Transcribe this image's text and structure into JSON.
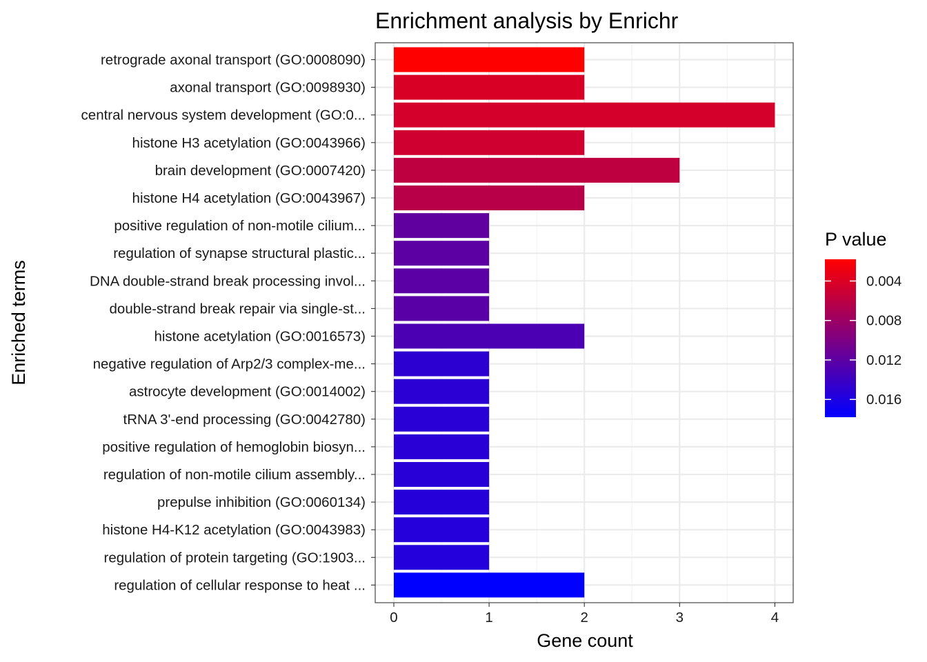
{
  "chart_data": {
    "type": "bar",
    "orientation": "horizontal",
    "title": "Enrichment analysis by Enrichr",
    "xlabel": "Gene count",
    "ylabel": "Enriched terms",
    "xlim": [
      0,
      4.2
    ],
    "x_ticks": [
      0,
      1,
      2,
      3,
      4
    ],
    "grid": true,
    "legend_position": "right",
    "categories": [
      "retrograde axonal transport (GO:0008090)",
      "axonal transport (GO:0098930)",
      "central nervous system development (GO:0...",
      "histone H3 acetylation (GO:0043966)",
      "brain development (GO:0007420)",
      "histone H4 acetylation (GO:0043967)",
      "positive regulation of non-motile cilium...",
      "regulation of synapse structural plastic...",
      "DNA double-strand break processing invol...",
      "double-strand break repair via single-st...",
      "histone acetylation (GO:0016573)",
      "negative regulation of Arp2/3 complex-me...",
      "astrocyte development (GO:0014002)",
      "tRNA 3'-end processing (GO:0042780)",
      "positive regulation of hemoglobin biosyn...",
      "regulation of non-motile cilium assembly...",
      "prepulse inhibition (GO:0060134)",
      "histone H4-K12 acetylation (GO:0043983)",
      "regulation of protein targeting (GO:1903...",
      "regulation of cellular response to heat ..."
    ],
    "values": [
      2,
      2,
      4,
      2,
      3,
      2,
      1,
      1,
      1,
      1,
      2,
      1,
      1,
      1,
      1,
      1,
      1,
      1,
      1,
      2
    ],
    "p_values": [
      0.0018,
      0.0042,
      0.0045,
      0.0048,
      0.0058,
      0.0063,
      0.0118,
      0.012,
      0.0121,
      0.0122,
      0.0131,
      0.015,
      0.0151,
      0.0152,
      0.0152,
      0.0153,
      0.0154,
      0.0155,
      0.0156,
      0.0178
    ],
    "color_scale": {
      "title": "P value",
      "min": 0.0018,
      "max": 0.0178,
      "low_color": "#ff0000",
      "high_color": "#0000ff",
      "ticks": [
        0.004,
        0.008,
        0.012,
        0.016
      ],
      "tick_labels": [
        "0.004",
        "0.008",
        "0.012",
        "0.016"
      ]
    },
    "colors": {
      "panel_border": "#333333",
      "grid_major": "#ebebeb",
      "grid_minor": "#f4f4f4",
      "tick": "#333333"
    }
  }
}
